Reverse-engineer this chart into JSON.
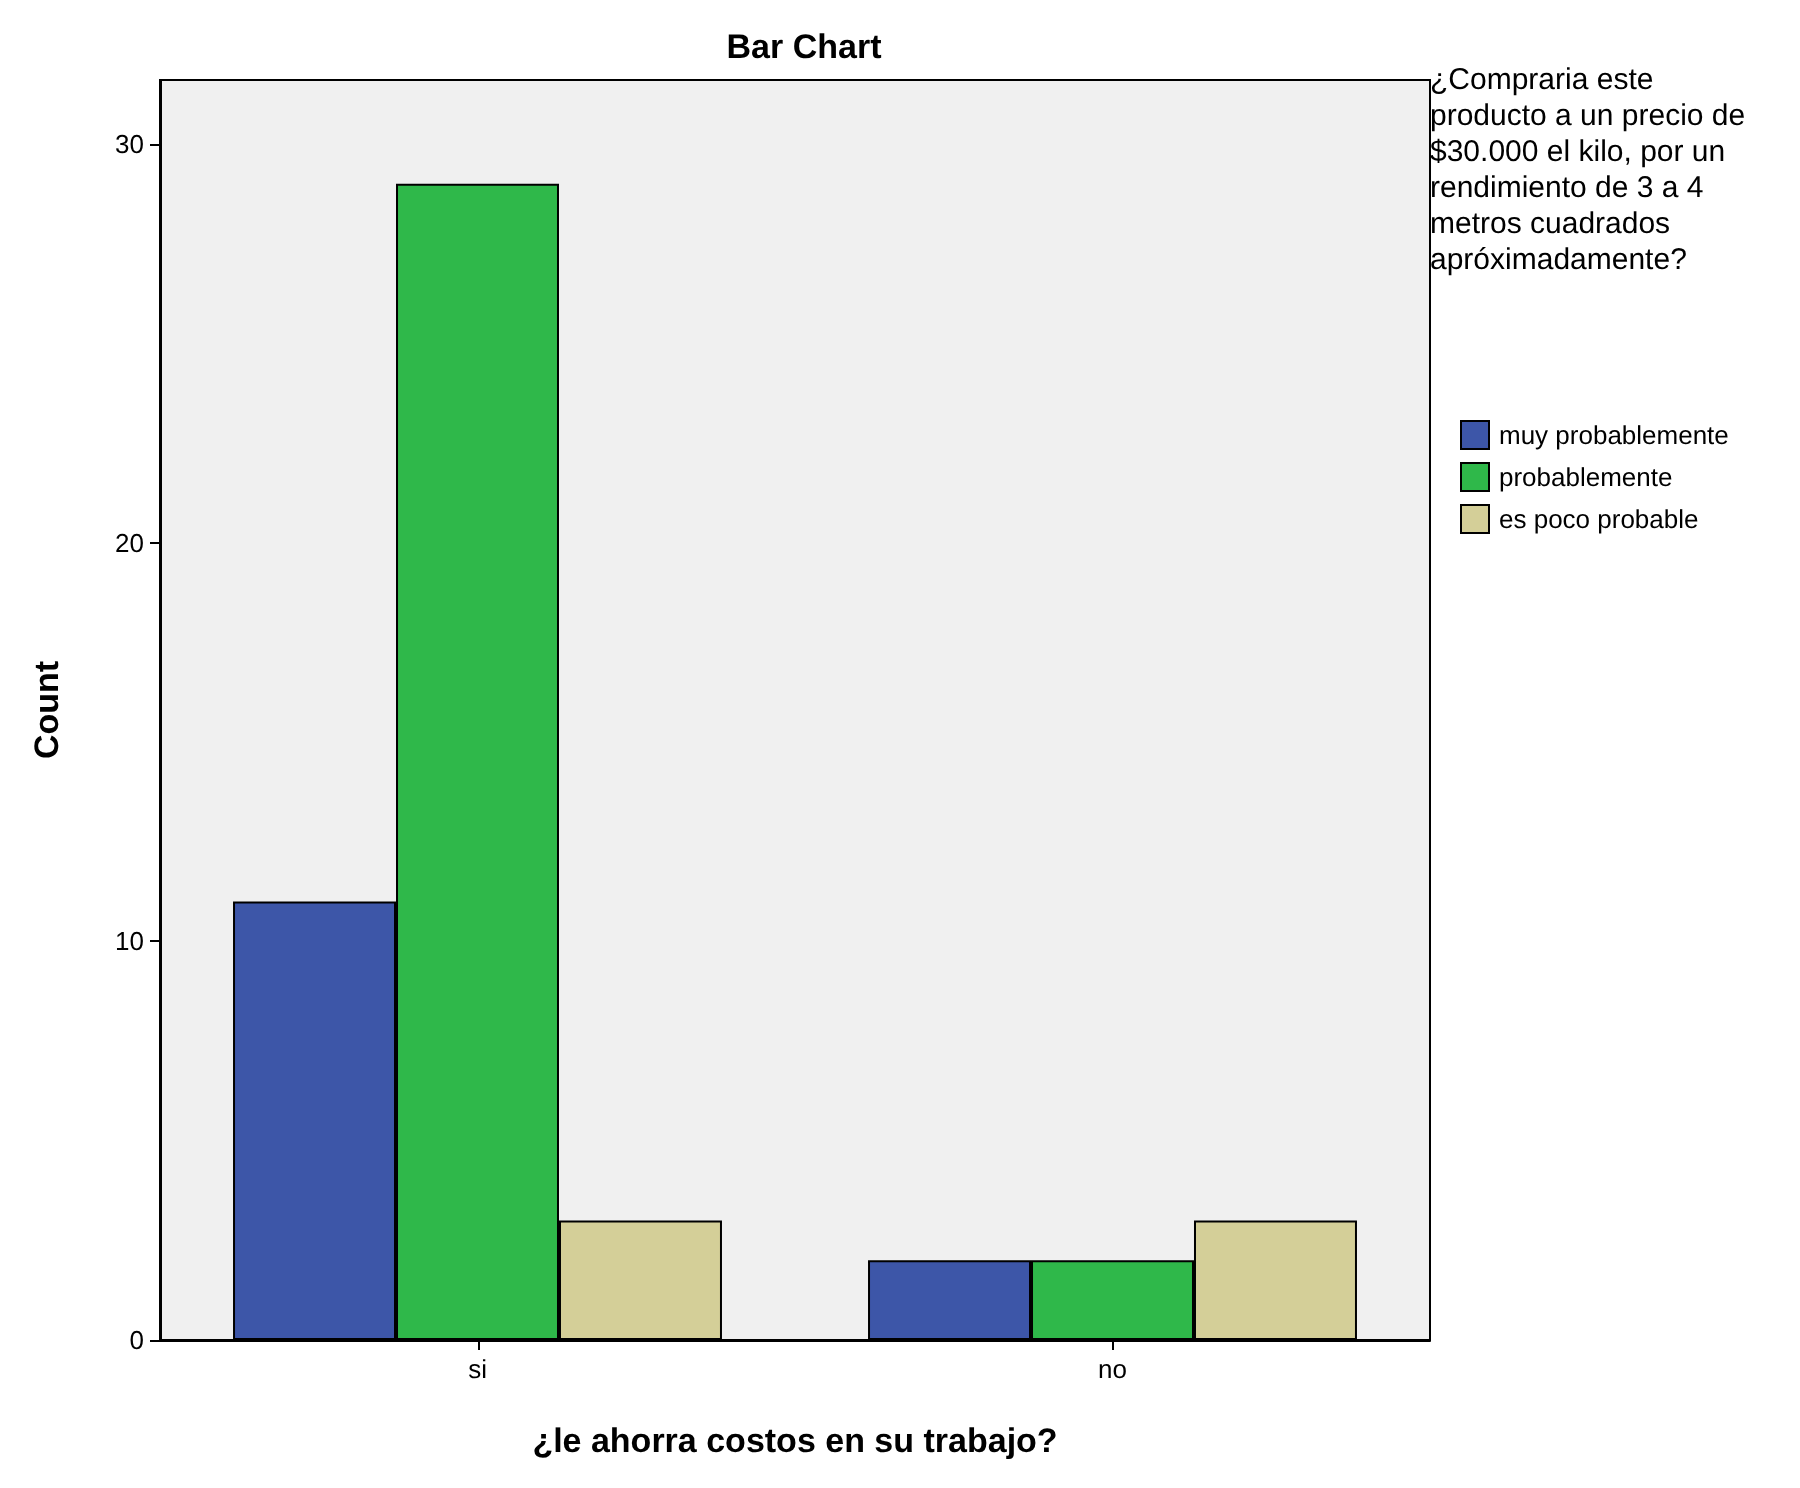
{
  "chart_data": {
    "type": "bar",
    "title": "Bar Chart",
    "xlabel": "¿le ahorra costos en su trabajo?",
    "ylabel": "Count",
    "legend_title": "¿Compraria este producto a un precio de $30.000 el kilo, por un rendimiento de 3 a 4 metros cuadrados apróximadamente?",
    "categories": [
      "si",
      "no"
    ],
    "series": [
      {
        "name": "muy probablemente",
        "color": "#3d56a8",
        "values": [
          11,
          2
        ]
      },
      {
        "name": "probablemente",
        "color": "#2fb84a",
        "values": [
          29,
          2
        ]
      },
      {
        "name": "es poco probable",
        "color": "#d4cf98",
        "values": [
          3,
          3
        ]
      }
    ],
    "ylim": [
      0,
      31.6
    ],
    "yticks": [
      0,
      10,
      20,
      30
    ],
    "grid": false,
    "legend": "top right"
  }
}
